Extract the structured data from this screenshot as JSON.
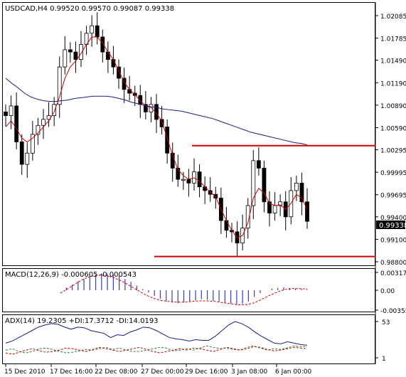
{
  "main": {
    "title": "USDCAD,H4  0.99520 0.99570 0.99087 0.99338",
    "price_ticks": [
      "1.02085",
      "1.01785",
      "1.01490",
      "1.01190",
      "1.00890",
      "1.00590",
      "1.00295",
      "0.99995",
      "0.99695",
      "0.99400",
      "0.99100",
      "0.98800"
    ],
    "current_price": "0.99338",
    "resistance_level": 1.0035,
    "support_level": 0.9887
  },
  "macd": {
    "title": "MACD(12,26,9)  -0.000605 -0.000543",
    "ticks": [
      "0.003177",
      "0.00",
      "-0.00355"
    ]
  },
  "adx": {
    "title": "ADX(14) 19.2305 +DI:17.3712 -DI:14.0193",
    "ticks": [
      "53",
      "1"
    ]
  },
  "time_labels": [
    "15 Dec 2010",
    "17 Dec 16:00",
    "22 Dec 08:00",
    "27 Dec 00:00",
    "29 Dec 16:00",
    "3 Jan 08:00",
    "6 Jan 00:00"
  ],
  "chart_data": {
    "type": "candlestick",
    "symbol": "USDCAD",
    "timeframe": "H4",
    "ohlc_last": {
      "open": 0.9952,
      "high": 0.9957,
      "low": 0.99087,
      "close": 0.99338
    },
    "ylim": [
      0.9871,
      1.0225
    ],
    "close_series": [
      1.0075,
      1.0088,
      1.004,
      1.001,
      1.0025,
      1.005,
      1.0062,
      1.007,
      1.0075,
      1.009,
      1.014,
      1.0163,
      1.016,
      1.015,
      1.017,
      1.0185,
      1.0195,
      1.018,
      1.016,
      1.015,
      1.014,
      1.0125,
      1.011,
      1.0105,
      1.0102,
      1.009,
      1.008,
      1.009,
      1.007,
      1.006,
      1.0025,
      1.0005,
      0.999,
      0.999,
      0.9985,
      1.0,
      0.998,
      0.9975,
      0.997,
      0.9965,
      0.9935,
      0.9922,
      0.992,
      0.9905,
      0.9925,
      0.9955,
      1.0015,
      1.0005,
      0.996,
      0.9945,
      0.9955,
      0.996,
      0.994,
      0.9975,
      0.9985,
      0.996,
      0.9934
    ],
    "ma_fast": [
      1.006,
      1.0068,
      1.0058,
      1.0045,
      1.004,
      1.0045,
      1.0052,
      1.006,
      1.0068,
      1.008,
      1.01,
      1.0125,
      1.014,
      1.0148,
      1.0158,
      1.017,
      1.018,
      1.018,
      1.0172,
      1.016,
      1.015,
      1.0135,
      1.012,
      1.011,
      1.0103,
      1.0095,
      1.0088,
      1.0086,
      1.0078,
      1.0068,
      1.0045,
      1.0022,
      1.0003,
      0.9995,
      0.999,
      0.9992,
      0.9988,
      0.998,
      0.9973,
      0.9967,
      0.995,
      0.9935,
      0.9922,
      0.9912,
      0.9915,
      0.9932,
      0.9965,
      0.9978,
      0.9972,
      0.9958,
      0.9955,
      0.9956,
      0.995,
      0.9958,
      0.997,
      0.9965,
      0.995
    ],
    "ma_slow": [
      1.0125,
      1.0118,
      1.0112,
      1.0105,
      1.01,
      1.0097,
      1.0095,
      1.0094,
      1.0094,
      1.0095,
      1.0096,
      1.0098,
      1.0099,
      1.01,
      1.0101,
      1.0101,
      1.0101,
      1.01,
      1.0098,
      1.0096,
      1.0093,
      1.0091,
      1.0089,
      1.0087,
      1.0086,
      1.0084,
      1.0083,
      1.0082,
      1.0081,
      1.0079,
      1.0077,
      1.0075,
      1.0073,
      1.0071,
      1.0068,
      1.0065,
      1.0062,
      1.0059,
      1.0056,
      1.0053,
      1.0051,
      1.0049,
      1.0047,
      1.0045,
      1.0043,
      1.0041,
      1.0039,
      1.0038,
      1.0036
    ],
    "macd_hist": [
      0.0,
      0.0005,
      0.001,
      0.0016,
      0.002,
      0.0024,
      0.0028,
      0.003,
      0.003,
      0.0028,
      0.0025,
      0.002,
      0.0015,
      0.0008,
      0.0002,
      -0.0004,
      -0.001,
      -0.0015,
      -0.002,
      -0.0022,
      -0.0023,
      -0.0022,
      -0.002,
      -0.0018,
      -0.0016,
      -0.0017,
      -0.0019,
      -0.002,
      -0.0022,
      -0.0024,
      -0.0025,
      -0.0024,
      -0.002,
      -0.0012,
      -0.0005,
      0.0,
      0.0003,
      0.0004,
      0.0005,
      0.0004,
      0.0003,
      0.0002,
      0.0001
    ],
    "macd_signal": [
      -0.0005,
      0.0003,
      0.0012,
      0.002,
      0.0025,
      0.0027,
      0.0026,
      0.0022,
      0.0016,
      0.0008,
      0.0,
      -0.0008,
      -0.0014,
      -0.0018,
      -0.002,
      -0.0021,
      -0.0021,
      -0.002,
      -0.0019,
      -0.0019,
      -0.002,
      -0.0022,
      -0.0024,
      -0.0026,
      -0.0026,
      -0.0023,
      -0.0017,
      -0.001,
      -0.0004,
      0.0001,
      0.0003,
      0.0003,
      0.0002
    ],
    "adx_series": [
      22,
      25,
      30,
      35,
      40,
      45,
      48,
      50,
      49,
      45,
      42,
      45,
      44,
      40,
      38,
      36,
      30,
      34,
      33,
      38,
      41,
      45,
      44,
      40,
      35,
      30,
      28,
      27,
      25,
      27,
      26,
      26,
      32,
      40,
      48,
      53,
      50,
      45,
      38,
      32,
      27,
      22,
      21,
      24,
      22,
      20,
      19
    ],
    "plus_di": [
      12,
      14,
      10,
      8,
      10,
      14,
      15,
      13,
      10,
      8,
      9,
      11,
      13,
      12,
      14,
      16,
      13,
      15,
      12,
      10,
      10,
      12,
      14,
      16,
      15,
      11,
      12,
      14,
      12,
      15,
      18,
      16,
      14,
      15,
      13,
      12,
      16,
      18,
      15,
      12,
      14,
      13,
      15,
      18,
      17,
      17
    ],
    "minus_di": [
      8,
      6,
      9,
      12,
      14,
      11,
      9,
      10,
      12,
      15,
      14,
      12,
      10,
      13,
      16,
      14,
      12,
      10,
      12,
      14,
      16,
      13,
      10,
      8,
      10,
      12,
      14,
      12,
      15,
      14,
      12,
      10,
      13,
      16,
      14,
      12,
      14,
      17,
      16,
      13,
      11,
      12,
      14,
      16,
      15,
      14
    ]
  }
}
